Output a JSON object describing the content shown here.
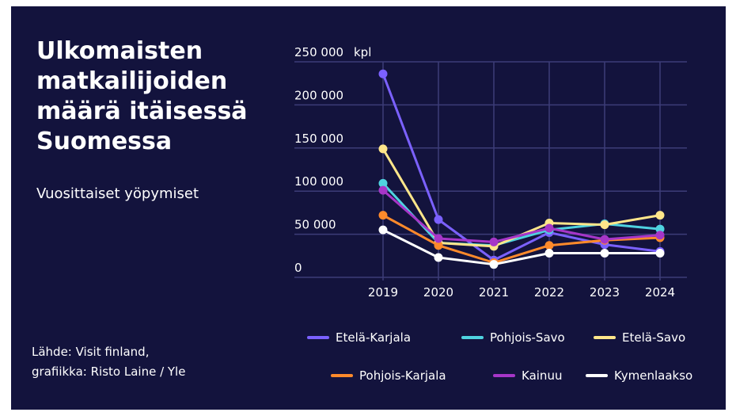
{
  "title": "Ulkomaisten matkailijoiden määrä itäisessä Suomessa",
  "subtitle": "Vuosittaiset yöpymiset",
  "source": {
    "line1": "Lähde: Visit finland,",
    "line2": "grafiikka: Risto Laine / Yle"
  },
  "colors": {
    "background": "#13133d",
    "grid": "#3c3c78"
  },
  "chart_data": {
    "type": "line",
    "title": "Ulkomaisten matkailijoiden määrä itäisessä Suomessa",
    "subtitle": "Vuosittaiset yöpymiset",
    "ylabel": "",
    "y_unit": "kpl",
    "x": [
      2019,
      2020,
      2021,
      2022,
      2023,
      2024
    ],
    "ylim": [
      0,
      250000
    ],
    "yticks": [
      0,
      50000,
      100000,
      150000,
      200000,
      250000
    ],
    "ytick_labels": [
      "0",
      "50 000",
      "100 000",
      "150 000",
      "200 000",
      "250 000"
    ],
    "grid": true,
    "legend": "bottom",
    "series": [
      {
        "name": "Etelä-Karjala",
        "color": "#7b61ff",
        "values": [
          236000,
          67000,
          20000,
          52000,
          38000,
          30000
        ]
      },
      {
        "name": "Pohjois-Savo",
        "color": "#4fd3e0",
        "values": [
          109000,
          40000,
          37000,
          55000,
          62000,
          56000
        ]
      },
      {
        "name": "Etelä-Savo",
        "color": "#ffe68a",
        "values": [
          149000,
          40000,
          36000,
          63000,
          61000,
          72000
        ]
      },
      {
        "name": "Pohjois-Karjala",
        "color": "#ff8a2b",
        "values": [
          72000,
          37000,
          17000,
          37000,
          43000,
          46000
        ]
      },
      {
        "name": "Kainuu",
        "color": "#a636c8",
        "values": [
          101000,
          45000,
          41000,
          57000,
          44000,
          49000
        ]
      },
      {
        "name": "Kymenlaakso",
        "color": "#ffffff",
        "values": [
          55000,
          23000,
          15000,
          28000,
          28000,
          28000
        ]
      }
    ]
  }
}
